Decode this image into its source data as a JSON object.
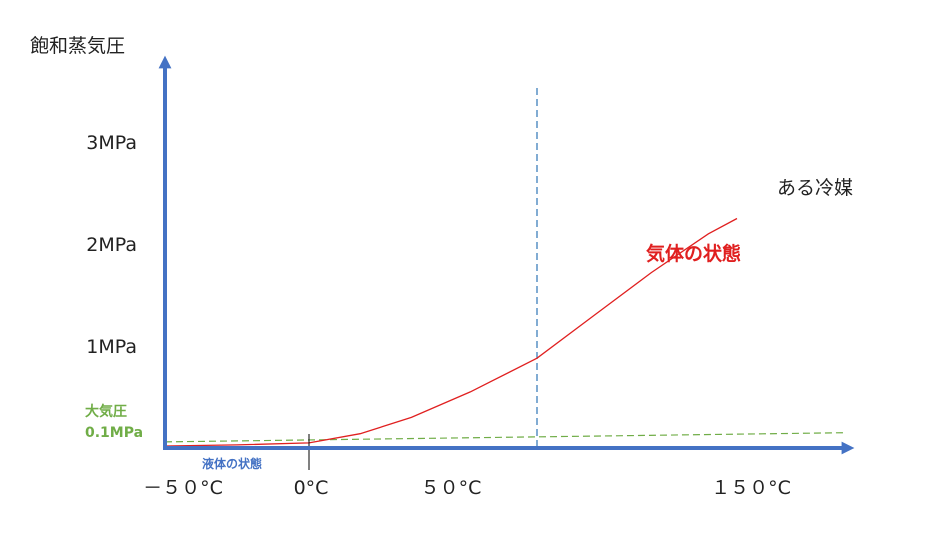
{
  "chart_data": {
    "type": "line",
    "ylabel": "飽和蒸気圧",
    "x_ticks": [
      {
        "value": -50,
        "label": "－５０°C"
      },
      {
        "value": 0,
        "label": "0°C"
      },
      {
        "value": 50,
        "label": "５０°C"
      },
      {
        "value": 150,
        "label": "１５０°C"
      }
    ],
    "y_ticks": [
      {
        "value": 1,
        "label": "1MPa"
      },
      {
        "value": 2,
        "label": "2MPa"
      },
      {
        "value": 3,
        "label": "3MPa"
      }
    ],
    "atmospheric_label": {
      "line1": "大気圧",
      "line2": "0.1MPa",
      "color": "#70ad47"
    },
    "curve_label": "ある冷媒",
    "gas_region_label": "気体の状態",
    "liquid_region_label": "液体の状態",
    "series": [
      {
        "color": "#e02020",
        "x": [
          -50,
          -25,
          0,
          20,
          40,
          60,
          80,
          100,
          120,
          140,
          150
        ],
        "y": [
          0.02,
          0.03,
          0.05,
          0.14,
          0.3,
          0.55,
          0.88,
          1.3,
          1.72,
          2.1,
          2.25
        ]
      }
    ],
    "reference_lines": [
      {
        "orientation": "vertical",
        "x": 80,
        "style": "dashed",
        "color": "#2e75b6"
      },
      {
        "orientation": "sloped",
        "x": [
          -50,
          175
        ],
        "y": [
          0.06,
          0.15
        ],
        "style": "dashed",
        "color": "#70ad47"
      }
    ],
    "zero_marker": {
      "x": 0
    },
    "axis_color": "#4472c4",
    "xlim": [
      -50,
      175
    ],
    "ylim": [
      0,
      3.8
    ]
  }
}
